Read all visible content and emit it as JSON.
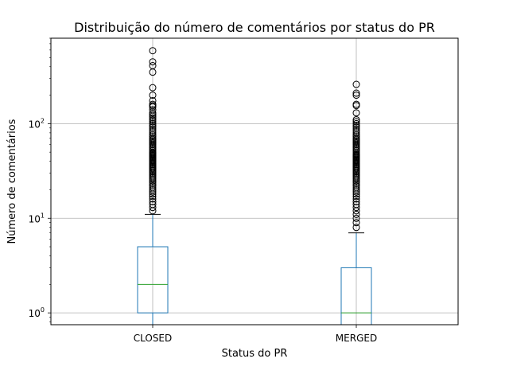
{
  "chart_data": {
    "type": "box",
    "title": "Distribuição do número de comentários por status do PR",
    "xlabel": "Status do PR",
    "ylabel": "Número de comentários",
    "yscale": "log",
    "ylim": [
      0.75,
      800
    ],
    "grid": true,
    "categories": [
      "CLOSED",
      "MERGED"
    ],
    "y_ticks": [
      {
        "value": 1,
        "base": "10",
        "exp": "0"
      },
      {
        "value": 10,
        "base": "10",
        "exp": "1"
      },
      {
        "value": 100,
        "base": "10",
        "exp": "2"
      }
    ],
    "boxes": [
      {
        "name": "CLOSED",
        "whisker_low": 0,
        "q1": 1,
        "median": 2,
        "q3": 5,
        "whisker_high": 11,
        "outliers": [
          12,
          13,
          14,
          15,
          16,
          17,
          18,
          19,
          20,
          21,
          22,
          23,
          24,
          25,
          26,
          27,
          28,
          29,
          30,
          31,
          32,
          33,
          34,
          35,
          36,
          37,
          38,
          39,
          40,
          41,
          42,
          43,
          44,
          45,
          46,
          47,
          48,
          49,
          50,
          52,
          54,
          56,
          58,
          60,
          62,
          64,
          66,
          68,
          70,
          73,
          76,
          80,
          84,
          88,
          92,
          96,
          100,
          105,
          110,
          115,
          120,
          125,
          130,
          140,
          150,
          155,
          160,
          175,
          200,
          240,
          350,
          410,
          450,
          590
        ]
      },
      {
        "name": "MERGED",
        "whisker_low": 0,
        "q1": 0,
        "median": 1,
        "q3": 3,
        "whisker_high": 7,
        "outliers": [
          8,
          9,
          10,
          11,
          12,
          13,
          14,
          15,
          16,
          17,
          18,
          19,
          20,
          21,
          22,
          23,
          24,
          25,
          26,
          27,
          28,
          29,
          30,
          31,
          32,
          33,
          34,
          35,
          36,
          37,
          38,
          39,
          40,
          41,
          42,
          43,
          44,
          45,
          46,
          47,
          48,
          50,
          52,
          54,
          56,
          58,
          60,
          62,
          64,
          66,
          68,
          70,
          73,
          76,
          80,
          84,
          88,
          92,
          96,
          100,
          105,
          110,
          130,
          155,
          160,
          200,
          210,
          260
        ]
      }
    ],
    "colors": {
      "box": "#1f77b4",
      "median": "#2ca02c",
      "outlier": "#000000",
      "grid": "#b0b0b0"
    }
  }
}
